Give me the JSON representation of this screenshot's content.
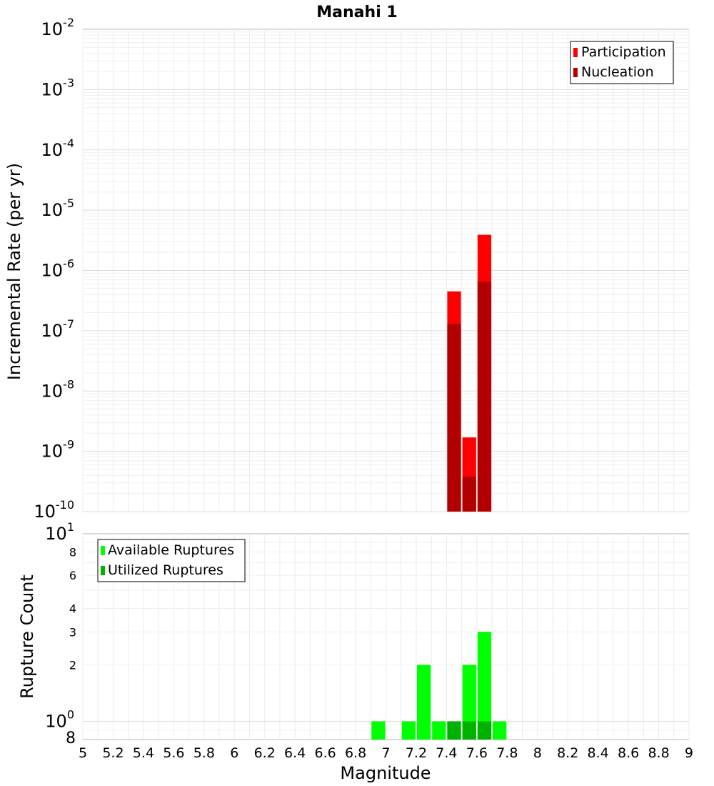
{
  "chart_data": [
    {
      "type": "bar",
      "title": "Manahi 1",
      "ylabel": "Incremental Rate (per yr)",
      "yscale": "log",
      "ylim": [
        1e-10,
        0.01
      ],
      "xlim": [
        5,
        9
      ],
      "y_ticks": [
        {
          "base": "10",
          "exp": "-2"
        },
        {
          "base": "10",
          "exp": "-3"
        },
        {
          "base": "10",
          "exp": "-4"
        },
        {
          "base": "10",
          "exp": "-5"
        },
        {
          "base": "10",
          "exp": "-6"
        },
        {
          "base": "10",
          "exp": "-7"
        },
        {
          "base": "10",
          "exp": "-8"
        },
        {
          "base": "10",
          "exp": "-9"
        },
        {
          "base": "10",
          "exp": "-10"
        }
      ],
      "legend_position": "top-right",
      "series": [
        {
          "name": "Participation",
          "color": "#ff0000",
          "points": [
            {
              "x": 7.45,
              "y": 4.5e-07
            },
            {
              "x": 7.55,
              "y": 1.7e-09
            },
            {
              "x": 7.65,
              "y": 3.9e-06
            }
          ]
        },
        {
          "name": "Nucleation",
          "color": "#b20000",
          "points": [
            {
              "x": 7.45,
              "y": 1.3e-07
            },
            {
              "x": 7.55,
              "y": 3.8e-10
            },
            {
              "x": 7.65,
              "y": 6.5e-07
            }
          ]
        }
      ]
    },
    {
      "type": "bar",
      "ylabel": "Rupture Count",
      "xlabel": "Magnitude",
      "yscale": "log",
      "ylim": [
        0.8,
        10
      ],
      "xlim": [
        5,
        9
      ],
      "x_ticks": [
        "5",
        "5.2",
        "5.4",
        "5.6",
        "5.8",
        "6",
        "6.2",
        "6.4",
        "6.6",
        "6.8",
        "7",
        "7.2",
        "7.4",
        "7.6",
        "7.8",
        "8",
        "8.2",
        "8.4",
        "8.6",
        "8.8",
        "9"
      ],
      "y_major_ticks": [
        {
          "value": 10,
          "base": "10",
          "exp": "1"
        },
        {
          "value": 1,
          "base": "10",
          "exp": "0"
        }
      ],
      "y_minor_ticks": [
        {
          "value": 8,
          "label": "8"
        },
        {
          "value": 6,
          "label": "6"
        },
        {
          "value": 4,
          "label": "4"
        },
        {
          "value": 3,
          "label": "3"
        },
        {
          "value": 2,
          "label": "2"
        },
        {
          "value": 0.8,
          "label": "8"
        }
      ],
      "legend_position": "top-left",
      "series": [
        {
          "name": "Available Ruptures",
          "color": "#00ff00",
          "points": [
            {
              "x": 6.95,
              "y": 1
            },
            {
              "x": 7.15,
              "y": 1
            },
            {
              "x": 7.25,
              "y": 2
            },
            {
              "x": 7.35,
              "y": 1
            },
            {
              "x": 7.45,
              "y": 1
            },
            {
              "x": 7.55,
              "y": 2
            },
            {
              "x": 7.65,
              "y": 3
            },
            {
              "x": 7.75,
              "y": 1
            }
          ]
        },
        {
          "name": "Utilized Ruptures",
          "color": "#00b200",
          "points": [
            {
              "x": 7.45,
              "y": 1
            },
            {
              "x": 7.55,
              "y": 1
            },
            {
              "x": 7.65,
              "y": 1
            }
          ]
        }
      ]
    }
  ]
}
